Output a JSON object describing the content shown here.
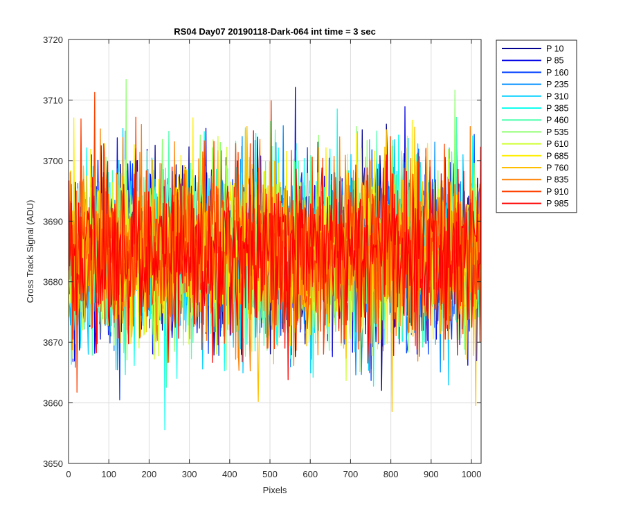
{
  "chart_data": {
    "type": "line",
    "title": "RS04 Day07 20190118-Dark-064 int time = 3 sec",
    "xlabel": "Pixels",
    "ylabel": "Cross Track Signal (ADU)",
    "xlim": [
      0,
      1024
    ],
    "ylim": [
      3650,
      3720
    ],
    "xticks": [
      0,
      100,
      200,
      300,
      400,
      500,
      600,
      700,
      800,
      900,
      1000
    ],
    "yticks": [
      3650,
      3660,
      3670,
      3680,
      3690,
      3700,
      3710,
      3720
    ],
    "grid": true,
    "legend_position": "outside-right-top",
    "approximate_distribution": {
      "mean": 3685,
      "std": 7.5,
      "min": 3654,
      "max": 3714
    },
    "series": [
      {
        "name": "P 10",
        "color": "#00008f"
      },
      {
        "name": "P 85",
        "color": "#0000e6"
      },
      {
        "name": "P 160",
        "color": "#0040ff"
      },
      {
        "name": "P 235",
        "color": "#008fff"
      },
      {
        "name": "P 310",
        "color": "#00cfff"
      },
      {
        "name": "P 385",
        "color": "#10ffef"
      },
      {
        "name": "P 460",
        "color": "#50ffaf"
      },
      {
        "name": "P 535",
        "color": "#8fff70"
      },
      {
        "name": "P 610",
        "color": "#cfff30"
      },
      {
        "name": "P 685",
        "color": "#ffef00"
      },
      {
        "name": "P 760",
        "color": "#ffbf00"
      },
      {
        "name": "P 835",
        "color": "#ff7f00"
      },
      {
        "name": "P 910",
        "color": "#ff4000"
      },
      {
        "name": "P 985",
        "color": "#ff0000"
      }
    ]
  }
}
